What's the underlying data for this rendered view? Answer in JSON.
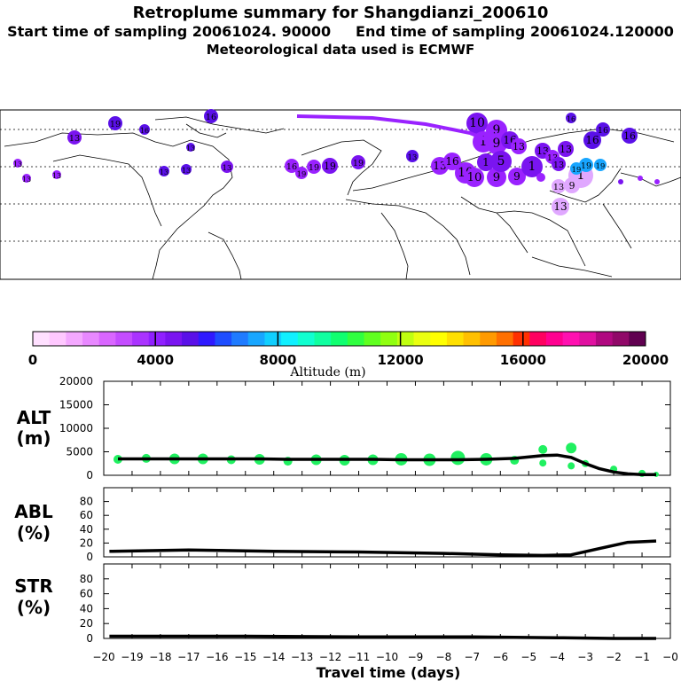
{
  "header": {
    "title": "Retroplume summary for Shangdianzi_200610",
    "subtitle": "Start time of sampling 20061024. 90000     End time of sampling 20061024.120000",
    "met_line": "Meteorological data used is ECMWF"
  },
  "colorbar": {
    "label": "Altitude (m)",
    "ticks": [
      "0",
      "4000",
      "8000",
      "12000",
      "16000",
      "20000"
    ],
    "colors": [
      "#ffe0ff",
      "#ffc8ff",
      "#f4a8ff",
      "#e888ff",
      "#d966ff",
      "#c44cff",
      "#aa33ff",
      "#9020ff",
      "#7a14f0",
      "#5a10e8",
      "#2f19ff",
      "#1e4dff",
      "#1f7bff",
      "#18a6ff",
      "#10cfff",
      "#10f0ff",
      "#10ffd0",
      "#10ffa0",
      "#10ff70",
      "#30ff40",
      "#60ff20",
      "#90ff10",
      "#c0ff10",
      "#eaff10",
      "#ffff00",
      "#ffe000",
      "#ffc000",
      "#ff9a00",
      "#ff7000",
      "#ff3000",
      "#ff0060",
      "#ff0090",
      "#ff10b0",
      "#e010a0",
      "#b00880",
      "#900868",
      "#600050"
    ]
  },
  "map": {
    "labels": [
      "1",
      "5",
      "9",
      "10",
      "13",
      "16",
      "19"
    ]
  },
  "chart_data": [
    {
      "type": "line",
      "panel": "ALT",
      "ylabel": "ALT\n(m)",
      "ylabel_lines": [
        "ALT",
        "(m)"
      ],
      "ylim": [
        0,
        20000
      ],
      "yticks": [
        "0",
        "5000",
        "10000",
        "15000",
        "20000"
      ],
      "x": [
        -19.5,
        -18.5,
        -17.5,
        -16.5,
        -15.5,
        -14.5,
        -13.5,
        -12.5,
        -11.5,
        -10.5,
        -9.5,
        -8.5,
        -7.5,
        -6.5,
        -5.5,
        -4.5,
        -4.0,
        -3.5,
        -3.0,
        -2.5,
        -2.0,
        -1.5,
        -1.0,
        -0.5
      ],
      "values": [
        3500,
        3500,
        3500,
        3500,
        3500,
        3500,
        3400,
        3400,
        3400,
        3400,
        3300,
        3300,
        3300,
        3400,
        3600,
        4200,
        4300,
        3800,
        2500,
        1400,
        700,
        300,
        150,
        150
      ],
      "scatter_x": [
        -19.5,
        -18.5,
        -17.5,
        -16.5,
        -15.5,
        -14.5,
        -13.5,
        -12.5,
        -11.5,
        -10.5,
        -9.5,
        -8.5,
        -7.5,
        -6.5,
        -5.5,
        -4.5,
        -4.5,
        -3.5,
        -3.5,
        -3.0,
        -2.0,
        -1.0,
        -0.5
      ],
      "scatter_y": [
        3400,
        3600,
        3500,
        3500,
        3300,
        3400,
        3000,
        3300,
        3200,
        3300,
        3400,
        3300,
        3700,
        3400,
        3200,
        5500,
        2600,
        5800,
        2000,
        2500,
        1300,
        400,
        200
      ],
      "scatter_size": [
        5,
        5,
        6,
        6,
        5,
        6,
        5,
        6,
        6,
        6,
        7,
        7,
        8,
        7,
        5,
        5,
        4,
        6,
        4,
        4,
        4,
        4,
        3
      ],
      "scatter_color": "#20f060"
    },
    {
      "type": "line",
      "panel": "ABL",
      "ylabel": "ABL\n(%)",
      "ylabel_lines": [
        "ABL",
        "(%)"
      ],
      "ylim": [
        0,
        100
      ],
      "yticks": [
        "0",
        "20",
        "40",
        "60",
        "80"
      ],
      "x": [
        -19.8,
        -17,
        -14,
        -11,
        -8,
        -6,
        -4.5,
        -3.5,
        -2.5,
        -1.5,
        -0.5
      ],
      "values": [
        8,
        10,
        8,
        7,
        5,
        3,
        2,
        3,
        12,
        21,
        23
      ]
    },
    {
      "type": "line",
      "panel": "STR",
      "ylabel": "STR\n(%)",
      "ylabel_lines": [
        "STR",
        "(%)"
      ],
      "ylim": [
        0,
        100
      ],
      "yticks": [
        "0",
        "20",
        "40",
        "60",
        "80"
      ],
      "x": [
        -19.8,
        -15,
        -11,
        -7,
        -4,
        -2,
        -0.5
      ],
      "values": [
        3,
        3,
        2,
        2,
        1,
        0,
        0
      ]
    }
  ],
  "xaxis": {
    "label": "Travel time (days)",
    "ticks": [
      "−20",
      "−19",
      "−18",
      "−17",
      "−16",
      "−15",
      "−14",
      "−13",
      "−12",
      "−11",
      "−10",
      "−9",
      "−8",
      "−7",
      "−6",
      "−5",
      "−4",
      "−3",
      "−2",
      "−1",
      "−0"
    ],
    "range": [
      -20,
      0
    ]
  }
}
